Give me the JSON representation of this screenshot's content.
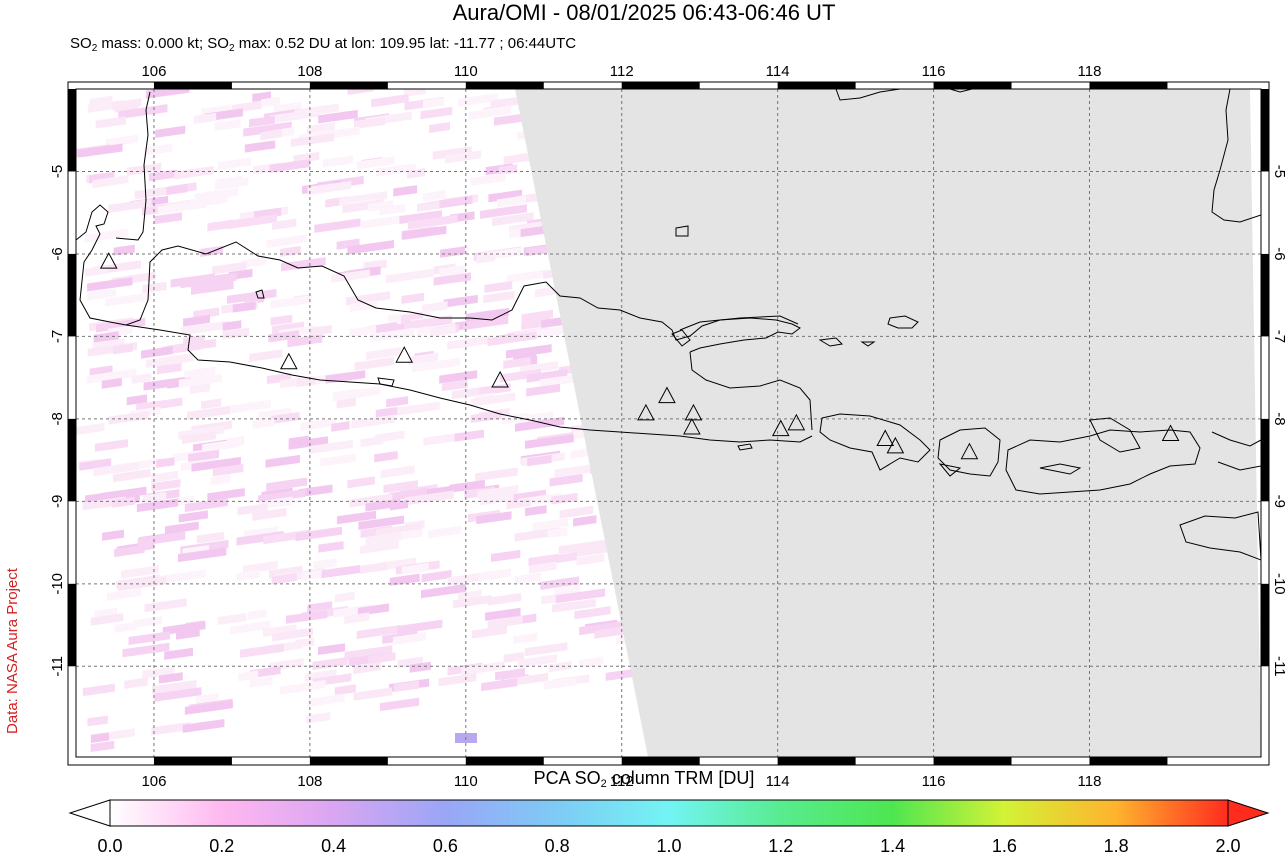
{
  "header": {
    "title": "Aura/OMI - 08/01/2025 06:43-06:46 UT",
    "subtitle_prefix": "SO",
    "subtitle_sub": "2",
    "subtitle_mid": " mass: 0.000 kt; SO",
    "subtitle_sub2": "2",
    "subtitle_rest": " max: 0.52 DU at lon: 109.95 lat: -11.77 ; 06:44UTC"
  },
  "credit": "Data: NASA Aura Project",
  "map": {
    "lon_ticks": [
      "106",
      "108",
      "110",
      "112",
      "114",
      "116",
      "118"
    ],
    "lat_ticks": [
      "-5",
      "-6",
      "-7",
      "-8",
      "-9",
      "-10",
      "-11"
    ],
    "lon_range": [
      105,
      120.2
    ],
    "lat_range": [
      -12.1,
      -4.0
    ],
    "no_data_color": "#e4e4e4",
    "volcanoes": [
      {
        "lon": 105.42,
        "lat": -6.1
      },
      {
        "lon": 107.73,
        "lat": -7.32
      },
      {
        "lon": 109.21,
        "lat": -7.24
      },
      {
        "lon": 110.44,
        "lat": -7.54
      },
      {
        "lon": 112.31,
        "lat": -7.94
      },
      {
        "lon": 112.58,
        "lat": -7.73
      },
      {
        "lon": 112.92,
        "lat": -7.94
      },
      {
        "lon": 112.9,
        "lat": -8.11
      },
      {
        "lon": 114.04,
        "lat": -8.13
      },
      {
        "lon": 114.24,
        "lat": -8.06
      },
      {
        "lon": 115.38,
        "lat": -8.25
      },
      {
        "lon": 115.51,
        "lat": -8.34
      },
      {
        "lon": 116.46,
        "lat": -8.41
      },
      {
        "lon": 119.04,
        "lat": -8.19
      }
    ]
  },
  "colorbar": {
    "title_prefix": "PCA SO",
    "title_sub": "2",
    "title_rest": " column TRM [DU]",
    "tick_labels": [
      "0.0",
      "0.2",
      "0.4",
      "0.6",
      "0.8",
      "1.0",
      "1.2",
      "1.4",
      "1.6",
      "1.8",
      "2.0"
    ],
    "range": [
      0.0,
      2.0
    ],
    "colors": [
      "#ffffff",
      "#ffb8f0",
      "#d9a6f2",
      "#9aa6f6",
      "#7ecbf5",
      "#73f4f4",
      "#58ec8f",
      "#4ee650",
      "#d3f236",
      "#ffb32e",
      "#ff2c1e"
    ]
  }
}
